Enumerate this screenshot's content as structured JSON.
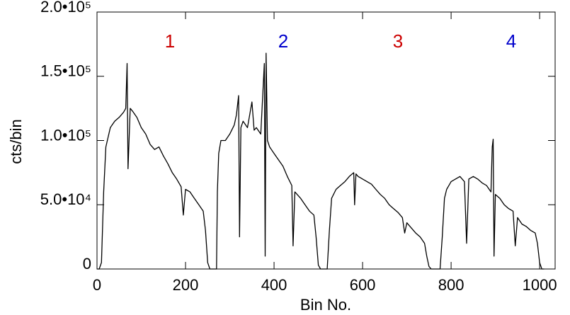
{
  "chart_data": {
    "type": "line",
    "x_label": "Bin No.",
    "y_label": "cts/bin",
    "xlim": [
      0,
      1035
    ],
    "xticks": [
      0,
      200,
      400,
      600,
      800,
      1000
    ],
    "ylim": [
      0,
      200000
    ],
    "yticks": [
      {
        "value": 0,
        "label": "0"
      },
      {
        "value": 50000,
        "label": "5.0•10⁴"
      },
      {
        "value": 100000,
        "label": "1.0•10⁵"
      },
      {
        "value": 150000,
        "label": "1.5•10⁵"
      },
      {
        "value": 200000,
        "label": "2.0•10⁵"
      }
    ],
    "grid": false,
    "annotations": [
      {
        "text": "1",
        "color": "#cc0000"
      },
      {
        "text": "2",
        "color": "#0000cc"
      },
      {
        "text": "3",
        "color": "#cc0000"
      },
      {
        "text": "4",
        "color": "#0000cc"
      }
    ],
    "series": [
      {
        "color": "#000000",
        "x": [
          0,
          5,
          10,
          15,
          20,
          30,
          40,
          50,
          60,
          65,
          68,
          70,
          75,
          80,
          90,
          100,
          110,
          120,
          130,
          140,
          150,
          160,
          170,
          180,
          190,
          195,
          200,
          210,
          220,
          230,
          240,
          245,
          250,
          255,
          265,
          270,
          272,
          275,
          280,
          290,
          300,
          310,
          315,
          320,
          322,
          325,
          330,
          340,
          350,
          355,
          360,
          370,
          378,
          380,
          382,
          385,
          390,
          400,
          410,
          420,
          430,
          440,
          443,
          447,
          460,
          470,
          480,
          490,
          495,
          500,
          505,
          520,
          525,
          530,
          540,
          550,
          560,
          570,
          580,
          582,
          585,
          590,
          600,
          610,
          620,
          630,
          640,
          650,
          660,
          670,
          680,
          690,
          695,
          700,
          710,
          720,
          730,
          740,
          745,
          750,
          755,
          775,
          780,
          785,
          790,
          800,
          810,
          820,
          830,
          835,
          840,
          850,
          860,
          870,
          880,
          890,
          893,
          895,
          897,
          900,
          910,
          920,
          930,
          940,
          945,
          950,
          960,
          970,
          980,
          990,
          995,
          1000,
          1005,
          1010
        ],
        "values": [
          0,
          0,
          5000,
          60000,
          95000,
          110000,
          115000,
          118000,
          122000,
          125000,
          160000,
          78000,
          125000,
          123000,
          118000,
          110000,
          105000,
          97000,
          93000,
          95000,
          88000,
          82000,
          75000,
          70000,
          64000,
          42000,
          62000,
          60000,
          55000,
          50000,
          45000,
          30000,
          5000,
          0,
          0,
          0,
          60000,
          90000,
          100000,
          100000,
          105000,
          112000,
          120000,
          135000,
          25000,
          110000,
          115000,
          110000,
          130000,
          108000,
          110000,
          105000,
          160000,
          10000,
          168000,
          100000,
          95000,
          90000,
          85000,
          80000,
          72000,
          65000,
          18000,
          60000,
          55000,
          50000,
          45000,
          42000,
          25000,
          3000,
          0,
          0,
          30000,
          55000,
          62000,
          65000,
          68000,
          72000,
          75000,
          50000,
          74000,
          72000,
          70000,
          68000,
          66000,
          62000,
          58000,
          55000,
          50000,
          47000,
          44000,
          40000,
          28000,
          36000,
          32000,
          28000,
          25000,
          20000,
          10000,
          2000,
          0,
          0,
          25000,
          55000,
          62000,
          68000,
          70000,
          72000,
          68000,
          20000,
          70000,
          72000,
          70000,
          67000,
          65000,
          60000,
          95000,
          101000,
          10000,
          58000,
          55000,
          50000,
          47000,
          45000,
          18000,
          40000,
          35000,
          33000,
          30000,
          28000,
          20000,
          5000,
          0,
          0
        ]
      }
    ]
  }
}
